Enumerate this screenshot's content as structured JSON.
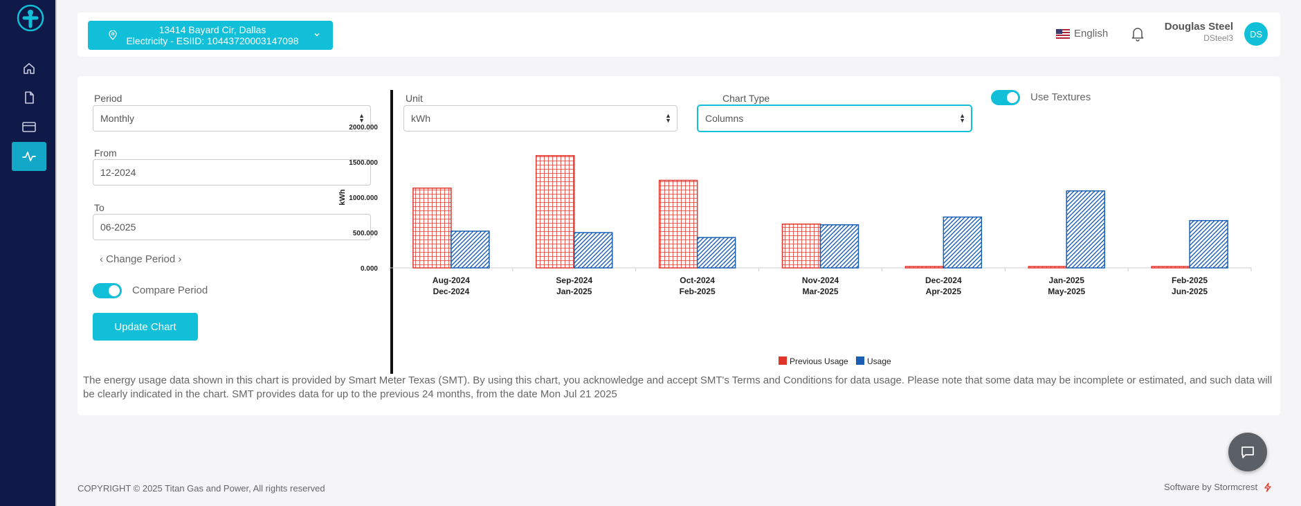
{
  "topbar": {
    "address_line1": "13414 Bayard Cir, Dallas",
    "address_line2": "Electricity - ESIID: 10443720003147098",
    "language": "English",
    "user_name": "Douglas Steel",
    "user_handle": "DSteel3",
    "avatar_initials": "DS"
  },
  "filters": {
    "period_label": "Period",
    "period_value": "Monthly",
    "from_label": "From",
    "from_value": "12-2024",
    "to_label": "To",
    "to_value": "06-2025",
    "change_period": "Change Period",
    "compare_label": "Compare Period",
    "compare_on": true,
    "update_button": "Update Chart",
    "unit_label": "Unit",
    "unit_value": "kWh",
    "chart_type_label": "Chart Type",
    "chart_type_value": "Columns",
    "textures_label": "Use Textures",
    "textures_on": true
  },
  "colors": {
    "accent": "#11bfd9",
    "sidebar": "#101a48",
    "previous": "#e0352b",
    "usage": "#1a5fb4"
  },
  "chart_data": {
    "type": "bar",
    "ylabel": "kWh",
    "ylim": [
      0,
      2000
    ],
    "yticks": [
      "0.000",
      "500.000",
      "1000.000",
      "1500.000",
      "2000.000"
    ],
    "categories": [
      [
        "Aug-2024",
        "Dec-2024"
      ],
      [
        "Sep-2024",
        "Jan-2025"
      ],
      [
        "Oct-2024",
        "Feb-2025"
      ],
      [
        "Nov-2024",
        "Mar-2025"
      ],
      [
        "Dec-2024",
        "Apr-2025"
      ],
      [
        "Jan-2025",
        "May-2025"
      ],
      [
        "Feb-2025",
        "Jun-2025"
      ]
    ],
    "series": [
      {
        "name": "Previous Usage",
        "values": [
          1130,
          1590,
          1240,
          620,
          20,
          20,
          20
        ]
      },
      {
        "name": "Usage",
        "values": [
          520,
          500,
          430,
          610,
          720,
          1090,
          670
        ]
      }
    ]
  },
  "disclaimer": "The energy usage data shown in this chart is provided by Smart Meter Texas (SMT). By using this chart, you acknowledge and accept SMT's Terms and Conditions for data usage. Please note that some data may be incomplete or estimated, and such data will be clearly indicated in the chart. SMT provides data for up to the previous 24 months, from the date Mon Jul 21 2025",
  "footer": {
    "copyright": "COPYRIGHT © 2025 Titan Gas and Power, All rights reserved",
    "software": "Software by Stormcrest"
  }
}
